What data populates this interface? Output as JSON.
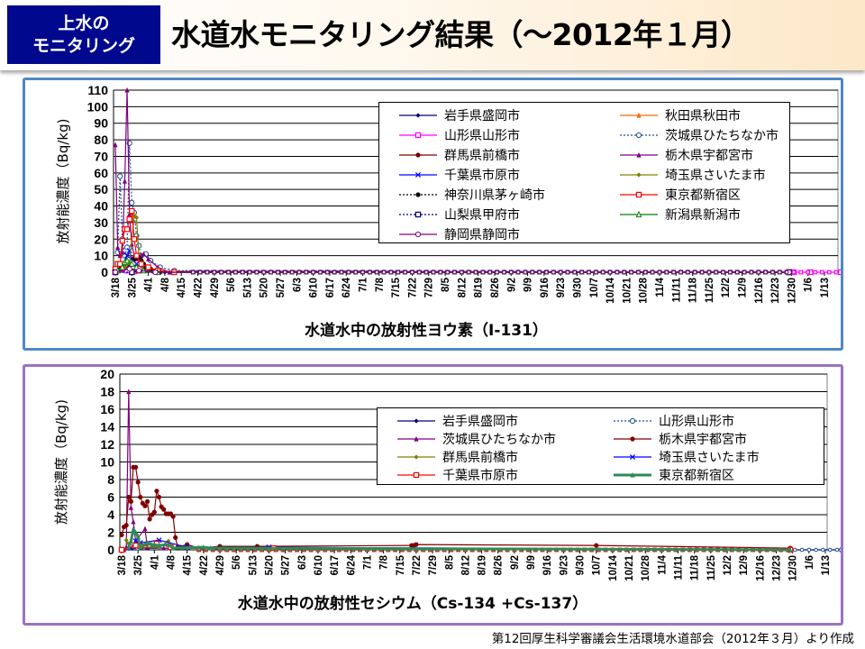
{
  "header": {
    "badge_line1": "上水の",
    "badge_line2": "モニタリング",
    "title": "水道水モニタリング結果（～2012年１月）",
    "badge_color": "#00088e"
  },
  "source_note": "第12回厚生科学審議会生活環境水道部会（2012年３月）より作成",
  "chart_data": [
    {
      "type": "line",
      "title": "",
      "xlabel": "水道水中の放射性ヨウ素（I-131）",
      "ylabel": "放射能濃度（Bq/kg)",
      "ylim": [
        0,
        110
      ],
      "yticks": [
        0,
        10,
        20,
        30,
        40,
        50,
        60,
        70,
        80,
        90,
        100,
        110
      ],
      "xticks": [
        "3/18",
        "3/25",
        "4/1",
        "4/8",
        "4/15",
        "4/22",
        "4/29",
        "5/6",
        "5/13",
        "5/20",
        "5/27",
        "6/3",
        "6/10",
        "6/17",
        "6/24",
        "7/1",
        "7/8",
        "7/15",
        "7/22",
        "7/29",
        "8/5",
        "8/12",
        "8/19",
        "8/26",
        "9/2",
        "9/9",
        "9/16",
        "9/23",
        "9/30",
        "10/7",
        "10/14",
        "10/21",
        "10/28",
        "11/4",
        "11/11",
        "11/18",
        "11/25",
        "12/2",
        "12/9",
        "12/16",
        "12/23",
        "12/30",
        "1/6",
        "1/13"
      ],
      "grid": true,
      "legend": "top-right",
      "series": [
        {
          "name": "岩手県盛岡市",
          "color": "#00007f",
          "marker": "diamond",
          "dash": false,
          "points": [
            [
              "3/18",
              0
            ],
            [
              "3/25",
              0.5
            ],
            [
              "4/8",
              0
            ],
            [
              "12/29",
              0
            ]
          ]
        },
        {
          "name": "秋田県秋田市",
          "color": "#ff6600",
          "marker": "triangle",
          "dash": false,
          "points": [
            [
              "3/18",
              0
            ],
            [
              "3/24",
              1
            ],
            [
              "3/28",
              0.5
            ],
            [
              "12/29",
              0
            ]
          ]
        },
        {
          "name": "山形県山形市",
          "color": "#ff00ff",
          "marker": "square",
          "dash": false,
          "points": [
            [
              "3/18",
              0
            ],
            [
              "3/23",
              1
            ],
            [
              "3/26",
              0.5
            ],
            [
              "12/29",
              0
            ],
            [
              "12/31",
              0
            ],
            [
              "1/7",
              0
            ],
            [
              "1/20",
              0
            ]
          ]
        },
        {
          "name": "茨城県ひたちなか市",
          "color": "#1f4f8f",
          "marker": "circle",
          "dash": true,
          "points": [
            [
              "3/19",
              12
            ],
            [
              "3/20",
              58
            ],
            [
              "3/21",
              20
            ],
            [
              "3/22",
              10
            ],
            [
              "3/23",
              15
            ],
            [
              "3/24",
              78
            ],
            [
              "3/25",
              42
            ],
            [
              "3/26",
              36
            ],
            [
              "3/27",
              22
            ],
            [
              "3/28",
              16
            ],
            [
              "3/29",
              10
            ],
            [
              "3/31",
              11
            ],
            [
              "4/2",
              7
            ],
            [
              "4/6",
              3
            ],
            [
              "4/12",
              1
            ],
            [
              "12/29",
              0
            ]
          ]
        },
        {
          "name": "群馬県前橋市",
          "color": "#800000",
          "marker": "dot",
          "dash": false,
          "points": [
            [
              "3/18",
              1
            ],
            [
              "3/20",
              2
            ],
            [
              "3/22",
              3
            ],
            [
              "3/24",
              2
            ],
            [
              "3/27",
              1
            ],
            [
              "4/3",
              0.5
            ],
            [
              "12/29",
              0
            ]
          ]
        },
        {
          "name": "栃木県宇都宮市",
          "color": "#800080",
          "marker": "triangle",
          "dash": false,
          "points": [
            [
              "3/18",
              77
            ],
            [
              "3/19",
              15
            ],
            [
              "3/20",
              10
            ],
            [
              "3/21",
              12
            ],
            [
              "3/22",
              55
            ],
            [
              "3/23",
              110
            ],
            [
              "3/24",
              35
            ],
            [
              "3/25",
              17
            ],
            [
              "3/26",
              10
            ],
            [
              "3/27",
              8
            ],
            [
              "3/29",
              10
            ],
            [
              "3/30",
              11
            ],
            [
              "4/1",
              8
            ],
            [
              "4/5",
              3
            ],
            [
              "4/10",
              0
            ],
            [
              "12/29",
              0
            ]
          ]
        },
        {
          "name": "千葉県市原市",
          "color": "#0000ff",
          "marker": "x",
          "dash": false,
          "points": [
            [
              "3/21",
              3
            ],
            [
              "3/23",
              10
            ],
            [
              "3/24",
              13
            ],
            [
              "3/25",
              8
            ],
            [
              "3/27",
              5
            ],
            [
              "3/30",
              2
            ],
            [
              "4/5",
              0
            ],
            [
              "12/29",
              0
            ]
          ]
        },
        {
          "name": "埼玉県さいたま市",
          "color": "#808000",
          "marker": "diamond",
          "dash": false,
          "points": [
            [
              "3/22",
              3
            ],
            [
              "3/24",
              5
            ],
            [
              "3/25",
              20
            ],
            [
              "3/26",
              34
            ],
            [
              "3/27",
              33
            ],
            [
              "3/28",
              10
            ],
            [
              "3/30",
              3
            ],
            [
              "4/5",
              0
            ],
            [
              "12/29",
              0
            ]
          ]
        },
        {
          "name": "神奈川県茅ヶ崎市",
          "color": "#000000",
          "marker": "dot",
          "dash": true,
          "points": [
            [
              "3/24",
              3
            ],
            [
              "3/26",
              8
            ],
            [
              "3/27",
              9
            ],
            [
              "3/28",
              9
            ],
            [
              "3/29",
              7
            ],
            [
              "3/30",
              5
            ],
            [
              "3/31",
              3
            ],
            [
              "4/2",
              2
            ],
            [
              "4/6",
              0
            ],
            [
              "12/29",
              0
            ]
          ]
        },
        {
          "name": "東京都新宿区",
          "color": "#ff0000",
          "marker": "square",
          "dash": false,
          "points": [
            [
              "3/18",
              2
            ],
            [
              "3/19",
              5
            ],
            [
              "3/20",
              5
            ],
            [
              "3/21",
              19
            ],
            [
              "3/22",
              26
            ],
            [
              "3/23",
              26
            ],
            [
              "3/24",
              32
            ],
            [
              "3/25",
              37
            ],
            [
              "3/26",
              20
            ],
            [
              "3/27",
              10
            ],
            [
              "3/29",
              5
            ],
            [
              "4/1",
              3
            ],
            [
              "4/5",
              1
            ],
            [
              "4/12",
              0
            ],
            [
              "12/29",
              0
            ]
          ]
        },
        {
          "name": "山梨県甲府市",
          "color": "#00007f",
          "marker": "square",
          "dash": true,
          "points": [
            [
              "3/18",
              0
            ],
            [
              "3/25",
              0
            ],
            [
              "12/29",
              0
            ]
          ]
        },
        {
          "name": "新潟県新潟市",
          "color": "#008000",
          "marker": "triangle-open",
          "dash": false,
          "points": [
            [
              "3/19",
              1
            ],
            [
              "3/21",
              3
            ],
            [
              "3/22",
              6
            ],
            [
              "3/23",
              7
            ],
            [
              "3/25",
              5
            ],
            [
              "3/27",
              3
            ],
            [
              "3/30",
              1
            ],
            [
              "4/5",
              0
            ],
            [
              "12/29",
              0
            ]
          ]
        },
        {
          "name": "静岡県静岡市",
          "color": "#7f007f",
          "marker": "circle",
          "dash": false,
          "points": [
            [
              "3/18",
              0
            ],
            [
              "3/24",
              2
            ],
            [
              "3/28",
              1
            ],
            [
              "4/4",
              0
            ],
            [
              "12/29",
              0
            ]
          ]
        }
      ]
    },
    {
      "type": "line",
      "title": "",
      "xlabel": "水道水中の放射性セシウム（Cs-134 +Cs-137）",
      "ylabel": "放射能濃度（Bq/kg)",
      "ylim": [
        0,
        20
      ],
      "yticks": [
        0,
        2,
        4,
        6,
        8,
        10,
        12,
        14,
        16,
        18,
        20
      ],
      "xticks": [
        "3/18",
        "3/25",
        "4/1",
        "4/8",
        "4/15",
        "4/22",
        "4/29",
        "5/6",
        "5/13",
        "5/20",
        "5/27",
        "6/3",
        "6/10",
        "6/17",
        "6/24",
        "7/1",
        "7/8",
        "7/15",
        "7/22",
        "7/29",
        "8/5",
        "8/12",
        "8/19",
        "8/26",
        "9/2",
        "9/9",
        "9/16",
        "9/23",
        "9/30",
        "10/7",
        "10/14",
        "10/21",
        "10/28",
        "11/4",
        "11/11",
        "11/18",
        "11/25",
        "12/2",
        "12/9",
        "12/16",
        "12/23",
        "12/30",
        "1/6",
        "1/13"
      ],
      "grid": true,
      "legend": "top-right",
      "series": [
        {
          "name": "岩手県盛岡市",
          "color": "#00007f",
          "marker": "diamond",
          "dash": false,
          "points": [
            [
              "3/18",
              0
            ],
            [
              "3/25",
              0.2
            ],
            [
              "12/29",
              0
            ],
            [
              "1/20",
              0
            ]
          ]
        },
        {
          "name": "山形県山形市",
          "color": "#1f4f8f",
          "marker": "circle",
          "dash": true,
          "points": [
            [
              "3/18",
              0
            ],
            [
              "3/25",
              0.2
            ],
            [
              "12/29",
              0
            ],
            [
              "1/20",
              0
            ]
          ]
        },
        {
          "name": "茨城県ひたちなか市",
          "color": "#800080",
          "marker": "triangle",
          "dash": false,
          "points": [
            [
              "3/19",
              0
            ],
            [
              "3/20",
              0.3
            ],
            [
              "3/21",
              18
            ],
            [
              "3/22",
              4.8
            ],
            [
              "3/23",
              3.2
            ],
            [
              "3/24",
              1
            ],
            [
              "3/28",
              2.4
            ],
            [
              "3/29",
              0.3
            ],
            [
              "4/5",
              0.2
            ],
            [
              "12/29",
              0
            ]
          ]
        },
        {
          "name": "栃木県宇都宮市",
          "color": "#800000",
          "marker": "dot",
          "dash": false,
          "points": [
            [
              "3/18",
              1.7
            ],
            [
              "3/19",
              2.6
            ],
            [
              "3/20",
              2.8
            ],
            [
              "3/21",
              6
            ],
            [
              "3/22",
              5.5
            ],
            [
              "3/23",
              9.4
            ],
            [
              "3/24",
              9.4
            ],
            [
              "3/25",
              7.7
            ],
            [
              "3/26",
              6
            ],
            [
              "3/27",
              5.3
            ],
            [
              "3/28",
              5
            ],
            [
              "3/29",
              5.5
            ],
            [
              "3/30",
              3.5
            ],
            [
              "3/31",
              4
            ],
            [
              "4/1",
              4.3
            ],
            [
              "4/2",
              6.7
            ],
            [
              "4/3",
              6
            ],
            [
              "4/4",
              4.9
            ],
            [
              "4/5",
              4.6
            ],
            [
              "4/6",
              4.1
            ],
            [
              "4/7",
              4.1
            ],
            [
              "4/8",
              4.1
            ],
            [
              "4/9",
              3.8
            ],
            [
              "4/10",
              1.4
            ],
            [
              "4/11",
              0.3
            ],
            [
              "4/15",
              0.6
            ],
            [
              "4/20",
              0.2
            ],
            [
              "4/29",
              0.4
            ],
            [
              "5/15",
              0.4
            ],
            [
              "7/20",
              0.5
            ],
            [
              "7/21",
              0.5
            ],
            [
              "7/22",
              0.6
            ],
            [
              "10/7",
              0.5
            ],
            [
              "12/29",
              0.2
            ]
          ]
        },
        {
          "name": "群馬県前橋市",
          "color": "#808000",
          "marker": "diamond",
          "dash": false,
          "points": [
            [
              "3/20",
              1.1
            ],
            [
              "3/21",
              0.7
            ],
            [
              "3/25",
              0.3
            ],
            [
              "4/3",
              0.3
            ],
            [
              "4/7",
              1
            ],
            [
              "4/9",
              0.2
            ],
            [
              "12/29",
              0
            ]
          ]
        },
        {
          "name": "埼玉県さいたま市",
          "color": "#0000ff",
          "marker": "x",
          "dash": false,
          "points": [
            [
              "3/22",
              0.2
            ],
            [
              "3/24",
              1
            ],
            [
              "3/26",
              0.8
            ],
            [
              "4/3",
              1.1
            ],
            [
              "4/15",
              0.3
            ],
            [
              "5/20",
              0.3
            ],
            [
              "12/29",
              0
            ]
          ]
        },
        {
          "name": "千葉県市原市",
          "color": "#ff0000",
          "marker": "square",
          "dash": false,
          "points": [
            [
              "3/18",
              0
            ],
            [
              "3/24",
              0.5
            ],
            [
              "3/26",
              0.4
            ],
            [
              "4/2",
              0.7
            ],
            [
              "4/8",
              0.3
            ],
            [
              "5/22",
              0.2
            ],
            [
              "12/29",
              0
            ]
          ]
        },
        {
          "name": "東京都新宿区",
          "color": "#2e8b57",
          "marker": "triangle",
          "dash": false,
          "thick": true,
          "points": [
            [
              "3/21",
              0.3
            ],
            [
              "3/22",
              1
            ],
            [
              "3/23",
              2.3
            ],
            [
              "3/24",
              2
            ],
            [
              "3/25",
              1.5
            ],
            [
              "3/26",
              0.3
            ],
            [
              "3/29",
              0.8
            ],
            [
              "3/31",
              0.6
            ],
            [
              "4/3",
              0.5
            ],
            [
              "4/7",
              0.6
            ],
            [
              "4/9",
              0.2
            ],
            [
              "4/22",
              0.3
            ],
            [
              "4/25",
              0.2
            ],
            [
              "12/29",
              0
            ]
          ]
        }
      ]
    }
  ]
}
